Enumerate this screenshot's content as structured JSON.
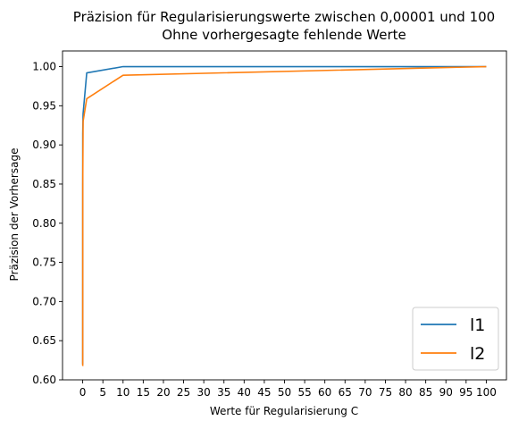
{
  "chart_data": {
    "type": "line",
    "title": "Präzision für Regularisierungswerte zwischen 0,00001 und 100",
    "subtitle": "Ohne vorhergesagte fehlende Werte",
    "xlabel": "Werte für Regularisierung C",
    "ylabel": "Präzision der Vorhersage",
    "xlim": [
      -5,
      105
    ],
    "ylim": [
      0.6,
      1.02
    ],
    "x_ticks": [
      0,
      5,
      10,
      15,
      20,
      25,
      30,
      35,
      40,
      45,
      50,
      55,
      60,
      65,
      70,
      75,
      80,
      85,
      90,
      95,
      100
    ],
    "y_ticks": [
      0.6,
      0.65,
      0.7,
      0.75,
      0.8,
      0.85,
      0.9,
      0.95,
      1.0
    ],
    "y_tick_labels": [
      "0.60",
      "0.65",
      "0.70",
      "0.75",
      "0.80",
      "0.85",
      "0.90",
      "0.95",
      "1.00"
    ],
    "grid": false,
    "legend_position": "bottom-right",
    "series": [
      {
        "name": "l1",
        "color": "#1f77b4",
        "x": [
          1e-05,
          0.0001,
          0.001,
          0.01,
          0.1,
          1,
          10,
          100
        ],
        "values": [
          0.62,
          0.62,
          0.62,
          0.915,
          0.94,
          0.992,
          1.0,
          1.0
        ]
      },
      {
        "name": "l2",
        "color": "#ff7f0e",
        "x": [
          1e-05,
          0.0001,
          0.001,
          0.01,
          0.1,
          1,
          10,
          100
        ],
        "values": [
          0.618,
          0.618,
          0.618,
          0.85,
          0.93,
          0.959,
          0.989,
          1.0
        ]
      }
    ]
  }
}
